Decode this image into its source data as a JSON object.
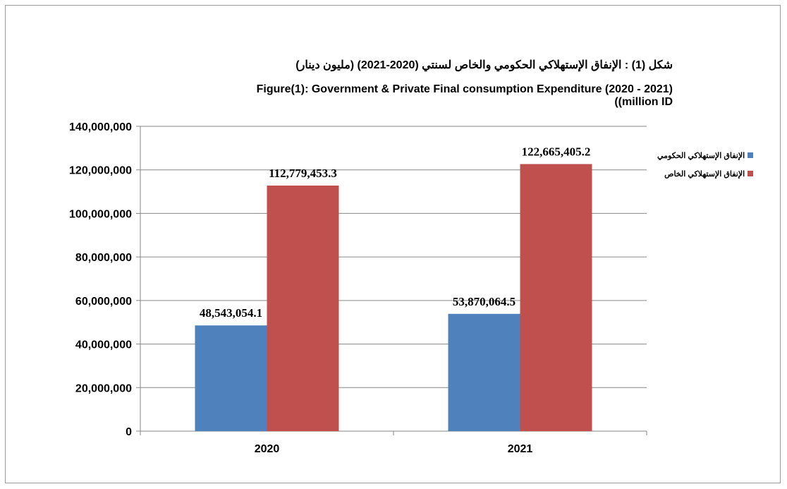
{
  "title": {
    "arabic": "شكل (1) : الإنفاق الإستهلاكي الحكومي والخاص لسنتي (2020-2021) (مليون دينار)",
    "english_line1": "Figure(1): Government & Private Final consumption Expenditure (2020 - 2021)",
    "english_line2": "((million ID"
  },
  "chart_data": {
    "type": "bar",
    "categories": [
      "2020",
      "2021"
    ],
    "series": [
      {
        "name": "الإنفاق الإستهلاكي الحكومي",
        "values": [
          48543054.1,
          53870064.5
        ],
        "labels": [
          "48,543,054.1",
          "53,870,064.5"
        ],
        "color": "#4f81bd"
      },
      {
        "name": "الإنفاق الإستهلاكي الخاص",
        "values": [
          112779453.3,
          122665405.2
        ],
        "labels": [
          "112,779,453.3",
          "122,665,405.2"
        ],
        "color": "#c0504d"
      }
    ],
    "yticks": [
      0,
      20000000,
      40000000,
      60000000,
      80000000,
      100000000,
      120000000,
      140000000
    ],
    "ytick_labels": [
      "0",
      "20,000,000",
      "40,000,000",
      "60,000,000",
      "80,000,000",
      "100,000,000",
      "120,000,000",
      "140,000,000"
    ],
    "ylim": [
      0,
      140000000
    ],
    "grid": true,
    "legend_position": "right"
  }
}
